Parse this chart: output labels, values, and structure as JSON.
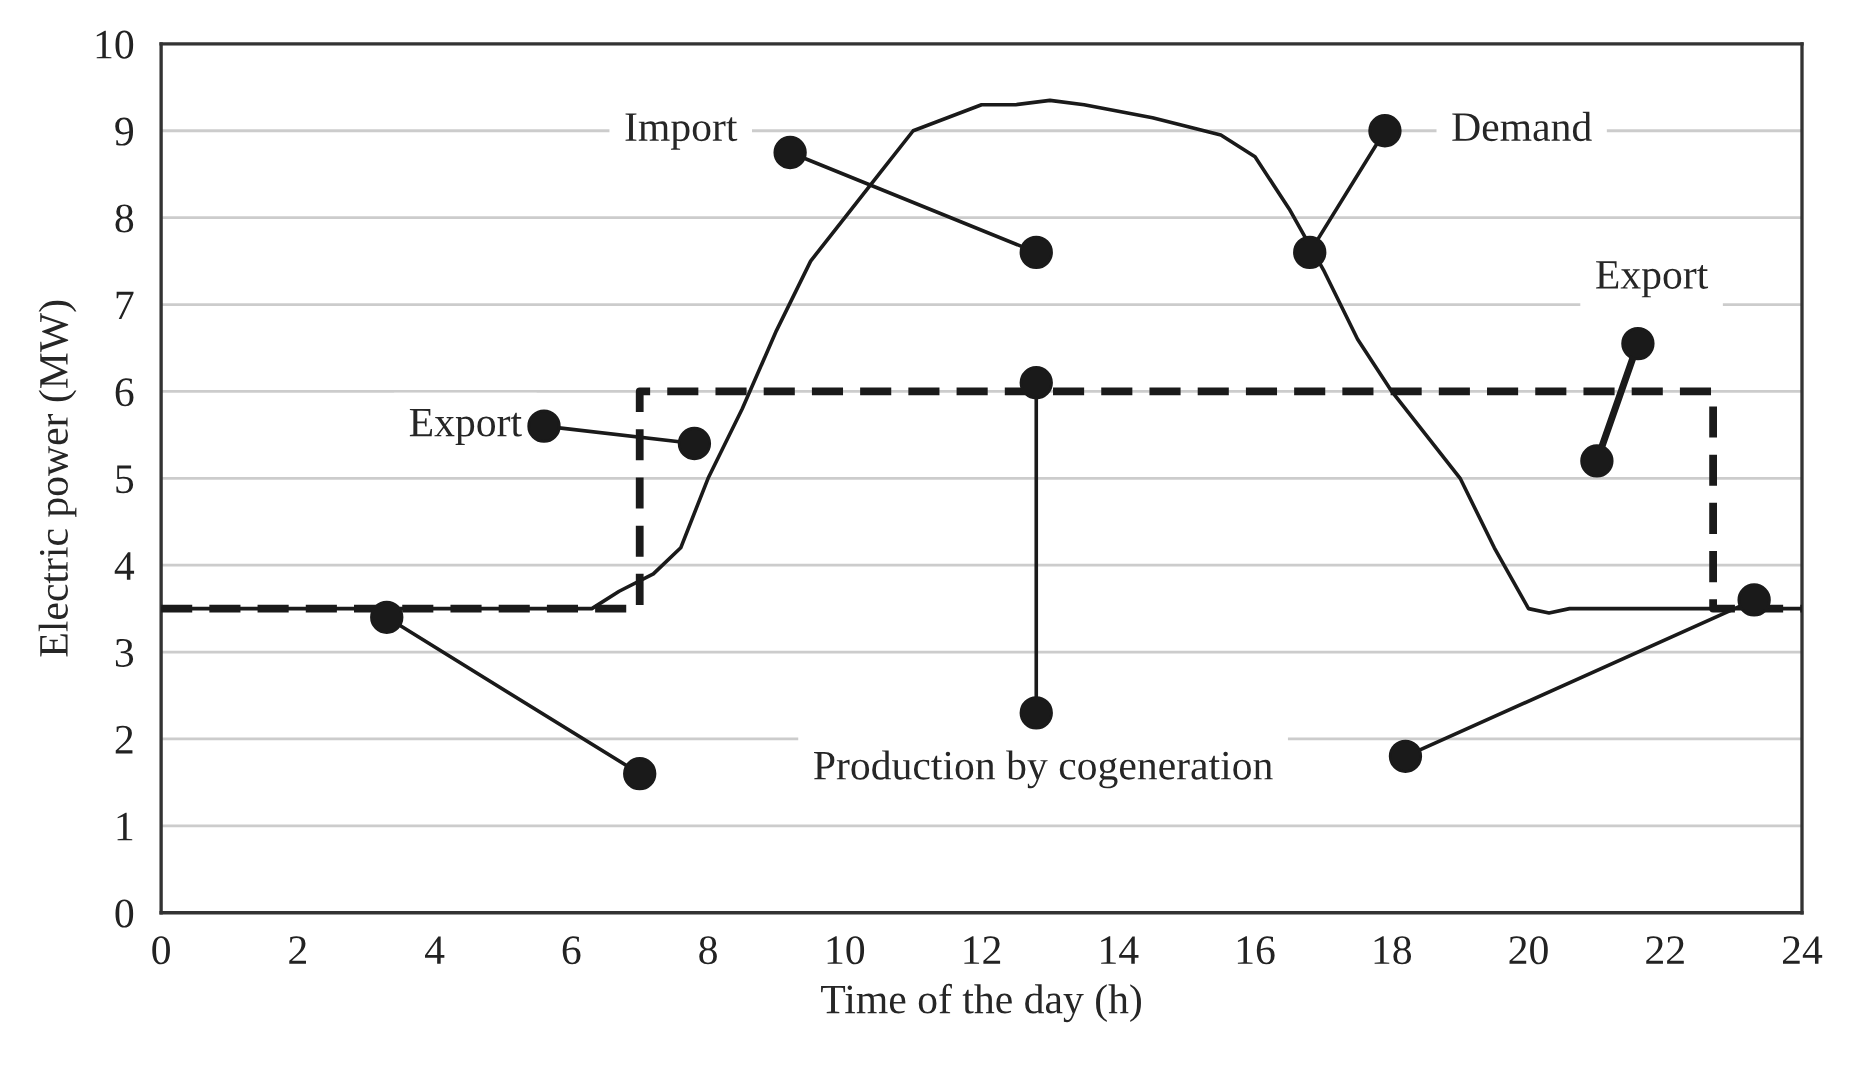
{
  "chart_data": {
    "type": "line",
    "xlabel": "Time of the day (h)",
    "ylabel": "Electric power (MW)",
    "series": [
      {
        "color": "#1a1a1a",
        "line_style": "solid",
        "x": [
          0,
          6.3,
          6.7,
          7.2,
          7.6,
          8.0,
          8.5,
          9.0,
          9.5,
          10.0,
          10.5,
          11.0,
          11.5,
          12.0,
          12.5,
          13.0,
          13.5,
          14.5,
          15.5,
          16.0,
          16.5,
          17.0,
          17.5,
          18.0,
          18.5,
          19.0,
          19.5,
          20.0,
          20.3,
          20.6,
          24
        ],
        "values": [
          3.5,
          3.5,
          3.7,
          3.9,
          4.2,
          5.0,
          5.8,
          6.7,
          7.5,
          8.0,
          8.5,
          9.0,
          9.15,
          9.3,
          9.3,
          9.35,
          9.3,
          9.15,
          8.95,
          8.7,
          8.1,
          7.4,
          6.6,
          6.0,
          5.5,
          5.0,
          4.2,
          3.5,
          3.45,
          3.5,
          3.5
        ]
      },
      {
        "type": "step",
        "color": "#1a1a1a",
        "line_style": "dashed",
        "x": [
          0,
          7,
          22.7,
          24
        ],
        "values": [
          3.5,
          6,
          3.5,
          3.5
        ]
      }
    ],
    "annotations": [
      "Import",
      "Demand",
      "Export",
      "Export",
      "Production by cogeneration"
    ],
    "xlim": [
      0,
      24
    ],
    "ylim": [
      0,
      10
    ],
    "xticks": [
      0,
      2,
      4,
      6,
      8,
      10,
      12,
      14,
      16,
      18,
      20,
      22,
      24
    ],
    "yticks": [
      0,
      1,
      2,
      3,
      4,
      5,
      6,
      7,
      8,
      9,
      10
    ],
    "grid": "y",
    "legend": false
  }
}
